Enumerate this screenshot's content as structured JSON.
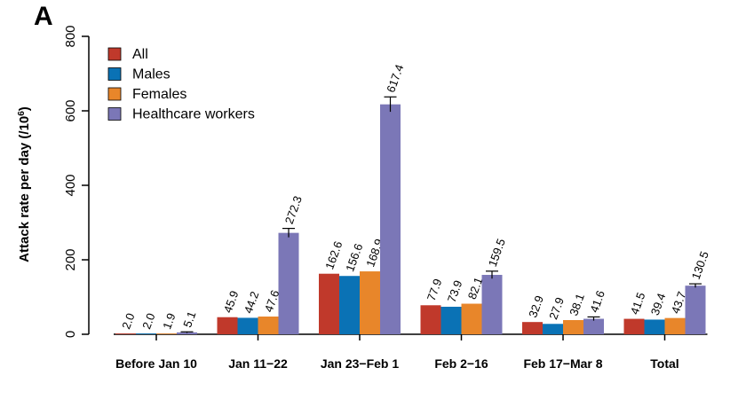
{
  "panel_label": "A",
  "colors": {
    "All": "#c0392b",
    "Males": "#0a72b5",
    "Females": "#e8862a",
    "Healthcare workers": "#7b77b7"
  },
  "chart_data": {
    "type": "bar",
    "xlabel": "",
    "ylabel_main": "Attack rate per day (/10",
    "ylabel_sup": "6",
    "ylabel_end": ")",
    "ylim": [
      0,
      800
    ],
    "yticks": [
      0,
      200,
      400,
      600,
      800
    ],
    "legend_position": "top-left",
    "categories": [
      "Before Jan 10",
      "Jan 11−22",
      "Jan 23−Feb 1",
      "Feb 2−16",
      "Feb 17−Mar 8",
      "Total"
    ],
    "series": [
      {
        "name": "All",
        "values": [
          2.0,
          45.9,
          162.6,
          77.9,
          32.9,
          41.5
        ],
        "labels": [
          "2.0",
          "45.9",
          "162.6",
          "77.9",
          "32.9",
          "41.5"
        ],
        "error": [
          0,
          0,
          0,
          0,
          0,
          0
        ]
      },
      {
        "name": "Males",
        "values": [
          2.0,
          44.2,
          156.6,
          73.9,
          27.9,
          39.4
        ],
        "labels": [
          "2.0",
          "44.2",
          "156.6",
          "73.9",
          "27.9",
          "39.4"
        ],
        "error": [
          0,
          0,
          0,
          0,
          0,
          0
        ]
      },
      {
        "name": "Females",
        "values": [
          1.9,
          47.6,
          168.9,
          82.1,
          38.1,
          43.7
        ],
        "labels": [
          "1.9",
          "47.6",
          "168.9",
          "82.1",
          "38.1",
          "43.7"
        ],
        "error": [
          0,
          0,
          0,
          0,
          0,
          0
        ]
      },
      {
        "name": "Healthcare workers",
        "values": [
          5.1,
          272.3,
          617.4,
          159.5,
          41.6,
          130.5
        ],
        "labels": [
          "5.1",
          "272.3",
          "617.4",
          "159.5",
          "41.6",
          "130.5"
        ],
        "error": [
          1.5,
          12,
          20,
          10,
          5,
          5
        ]
      }
    ]
  }
}
